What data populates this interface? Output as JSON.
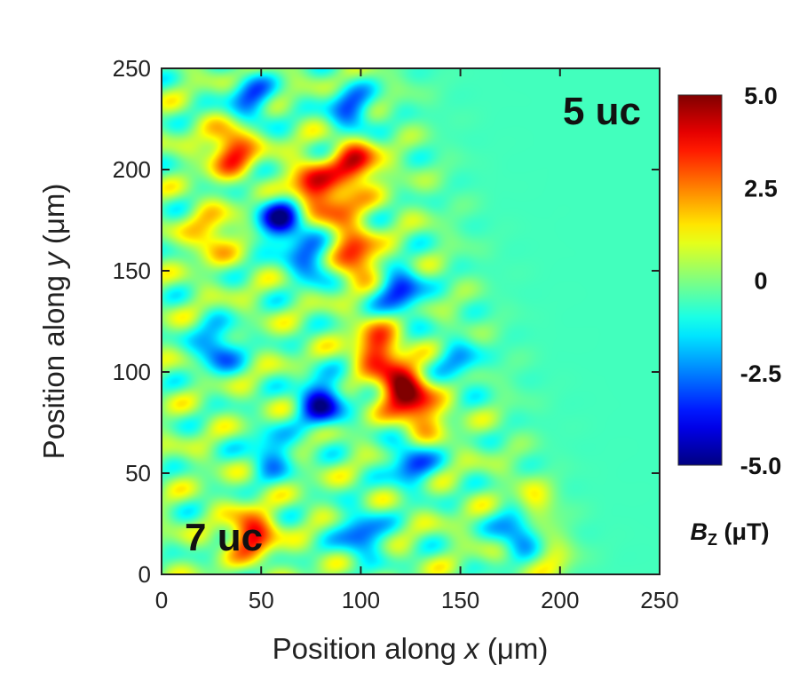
{
  "chart_data": {
    "type": "heatmap",
    "xlabel_pre": "Position along ",
    "xlabel_var": "x",
    "xlabel_unit": " (μm)",
    "ylabel_pre": "Position along ",
    "ylabel_var": "y",
    "ylabel_unit": " (μm)",
    "xlim": [
      0,
      250
    ],
    "ylim": [
      0,
      250
    ],
    "x_ticks": [
      "0",
      "50",
      "100",
      "150",
      "200",
      "250"
    ],
    "y_ticks": [
      "0",
      "50",
      "100",
      "150",
      "200",
      "250"
    ],
    "annotations": {
      "top_right": "5 uc",
      "bottom_left": "7 uc"
    },
    "colorbar": {
      "title_var": "B",
      "title_sub": "Z",
      "title_unit": " (μT)",
      "ticks": [
        "5.0",
        "2.5",
        "0",
        "-2.5",
        "-5.0"
      ],
      "range": [
        -5.0,
        5.0
      ],
      "colormap": "jet"
    },
    "field_features": [
      {
        "x": 120,
        "y": 93,
        "bz": 5.0
      },
      {
        "x": 108,
        "y": 112,
        "bz": 3.8
      },
      {
        "x": 45,
        "y": 20,
        "bz": 4.0
      },
      {
        "x": 35,
        "y": 210,
        "bz": 3.8
      },
      {
        "x": 75,
        "y": 192,
        "bz": 4.0
      },
      {
        "x": 97,
        "y": 203,
        "bz": 4.2
      },
      {
        "x": 97,
        "y": 157,
        "bz": 3.8
      },
      {
        "x": 190,
        "y": 35,
        "bz": 3.5
      },
      {
        "x": 200,
        "y": 10,
        "bz": 2.6
      },
      {
        "x": 130,
        "y": 80,
        "bz": 3.0
      },
      {
        "x": 90,
        "y": 180,
        "bz": 2.5
      },
      {
        "x": 25,
        "y": 168,
        "bz": 2.2
      },
      {
        "x": 60,
        "y": 175,
        "bz": -4.5
      },
      {
        "x": 80,
        "y": 85,
        "bz": -4.5
      },
      {
        "x": 120,
        "y": 140,
        "bz": -3.5
      },
      {
        "x": 95,
        "y": 230,
        "bz": -3.0
      },
      {
        "x": 45,
        "y": 235,
        "bz": -2.8
      },
      {
        "x": 28,
        "y": 112,
        "bz": -3.0
      },
      {
        "x": 180,
        "y": 22,
        "bz": -3.5
      },
      {
        "x": 125,
        "y": 55,
        "bz": -3.0
      },
      {
        "x": 75,
        "y": 155,
        "bz": -2.8
      },
      {
        "x": 100,
        "y": 20,
        "bz": -3.0
      },
      {
        "x": 55,
        "y": 60,
        "bz": -2.5
      },
      {
        "x": 150,
        "y": 105,
        "bz": -2.2
      }
    ]
  }
}
